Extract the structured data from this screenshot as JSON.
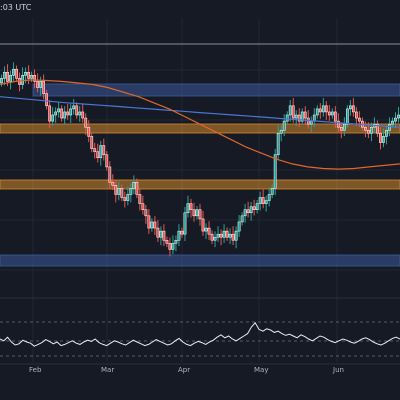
{
  "header": {
    "text": ":03 UTC"
  },
  "chart_data": {
    "type": "candlestick",
    "title": "",
    "x_ticks": [
      "Feb",
      "Mar",
      "Apr",
      "May",
      "Jun"
    ],
    "y_axis_labels_visible": false,
    "grid": true,
    "colors": {
      "background": "#161a25",
      "up": "#26a69a",
      "down": "#ef5350",
      "candle_border": "#ffffff",
      "blue_zone": "#3d5a9a",
      "orange_zone": "#d58a2e",
      "ma_blue": "#4a78d8",
      "ma_orange": "#e0662a",
      "indicator_line": "#e9ecf2"
    },
    "zones": [
      {
        "name": "blue-resistance-zone",
        "color": "blue"
      },
      {
        "name": "orange-resistance-zone",
        "color": "orange"
      },
      {
        "name": "orange-support-zone",
        "color": "orange"
      },
      {
        "name": "blue-support-zone",
        "color": "blue"
      }
    ],
    "price_series_approx": [
      96,
      98,
      95,
      97,
      99,
      96,
      94,
      97,
      98,
      96,
      97,
      95,
      93,
      95,
      91,
      87,
      82,
      84,
      85,
      86,
      83,
      85,
      84,
      86,
      87,
      84,
      85,
      83,
      80,
      77,
      73,
      72,
      70,
      74,
      71,
      67,
      62,
      61,
      58,
      60,
      57,
      56,
      58,
      60,
      62,
      58,
      55,
      53,
      51,
      47,
      49,
      47,
      44,
      46,
      43,
      42,
      40,
      42,
      43,
      46,
      45,
      52,
      55,
      53,
      51,
      53,
      50,
      46,
      47,
      45,
      43,
      44,
      45,
      44,
      46,
      44,
      45,
      43,
      46,
      49,
      51,
      53,
      52,
      54,
      53,
      55,
      57,
      55,
      56,
      58,
      60,
      71,
      78,
      79,
      82,
      84,
      87,
      83,
      84,
      82,
      85,
      83,
      81,
      82,
      84,
      86,
      85,
      87,
      85,
      84,
      85,
      82,
      80,
      79,
      81,
      86,
      87,
      85,
      83,
      82,
      80,
      79,
      78,
      80,
      81,
      78,
      75,
      77,
      79,
      81,
      82,
      83,
      84
    ],
    "ma_blue_series_approx": [
      90,
      89.5,
      89,
      88.5,
      88,
      87.6,
      87.2,
      86.8,
      86.4,
      86,
      85.6,
      85.2,
      84.8,
      84.4,
      84,
      83.6,
      83.2,
      82.8,
      82.4,
      82,
      81.6,
      81.2,
      80.8,
      80.4,
      80
    ],
    "ma_orange_series_approx": [
      94,
      95,
      95.5,
      95.3,
      95,
      94.5,
      94,
      93,
      91.5,
      90,
      88,
      86,
      83.5,
      81,
      78.5,
      76,
      73.5,
      71.5,
      69.5,
      68,
      67,
      66.5,
      66.3,
      66.5,
      67,
      67.5,
      68
    ],
    "indicator_series_approx": [
      55,
      52,
      58,
      50,
      45,
      47,
      53,
      50,
      48,
      43,
      46,
      49,
      54,
      51,
      47,
      50,
      44,
      46,
      49,
      52,
      48,
      46,
      50,
      53,
      51,
      55,
      49,
      46,
      44,
      48,
      52,
      50,
      47,
      45,
      49,
      53,
      50,
      47,
      44,
      46,
      50,
      54,
      51,
      48,
      45,
      47,
      52,
      56,
      50,
      46,
      44,
      48,
      51,
      49,
      46,
      50,
      53,
      58,
      62,
      57,
      60,
      55,
      52,
      56,
      60,
      64,
      75,
      82,
      71,
      68,
      72,
      70,
      66,
      68,
      64,
      61,
      63,
      60,
      57,
      62,
      59,
      55,
      52,
      56,
      60,
      58,
      54,
      51,
      49,
      52,
      55,
      53,
      50,
      48,
      51,
      55,
      57,
      54,
      50,
      47,
      45,
      48,
      52,
      56,
      58,
      55
    ]
  }
}
